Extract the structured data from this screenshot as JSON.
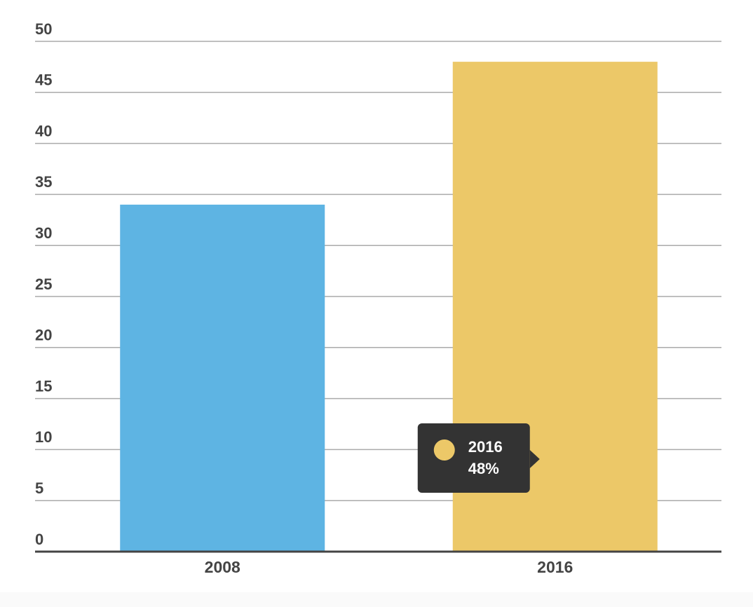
{
  "chart_data": {
    "type": "bar",
    "categories": [
      "2008",
      "2016"
    ],
    "values": [
      34,
      48
    ],
    "value_labels": [
      null,
      "48%"
    ],
    "colors": [
      "#5eb4e3",
      "#ecc868"
    ],
    "ylim": [
      0,
      50
    ],
    "yticks": [
      0,
      5,
      10,
      15,
      20,
      25,
      30,
      35,
      40,
      45,
      50
    ],
    "grid": true,
    "tooltip_index": 1
  }
}
